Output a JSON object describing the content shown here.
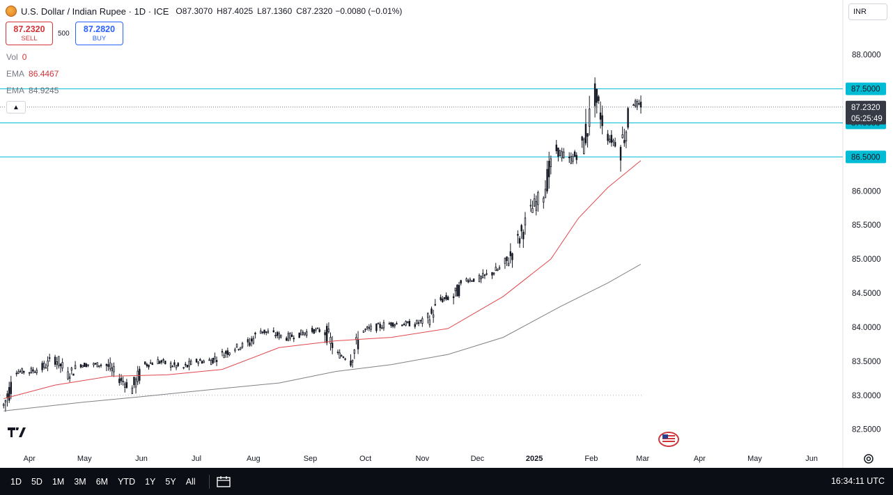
{
  "window": {
    "symbol_title": "U.S. Dollar / Indian Rupee · 1D · ICE",
    "ohlc": {
      "o_label": "O",
      "o": "87.3070",
      "h_label": "H",
      "h": "87.4025",
      "l_label": "L",
      "l": "87.1360",
      "c_label": "C",
      "c": "87.2320",
      "change": "−0.0080 (−0.01%)"
    },
    "currency_selector": "INR"
  },
  "trade": {
    "sell_price": "87.2320",
    "sell_label": "SELL",
    "spread": "500",
    "buy_price": "87.2820",
    "buy_label": "BUY"
  },
  "indicators": {
    "vol_label": "Vol",
    "vol_value": "0",
    "ema1_label": "EMA",
    "ema1_value": "86.4467",
    "ema2_label": "EMA",
    "ema2_value": "84.9245"
  },
  "bottom_bar": {
    "ranges": [
      "1D",
      "5D",
      "1M",
      "3M",
      "6M",
      "YTD",
      "1Y",
      "5Y",
      "All"
    ],
    "clock": "16:34:11 UTC"
  },
  "colors": {
    "candle": "#131722",
    "ema_fast": "#e0474c",
    "ema_slow": "#7f7f86",
    "level_line": "#00bcd4",
    "level_label_bg": "#00bcd4",
    "last_price_bg": "#363a45",
    "axis_text": "#131722"
  },
  "icons": [
    "usd-inr-symbol-icon",
    "chevron-up-icon",
    "tradingview-logo-icon",
    "us-flag-icon",
    "gear-icon",
    "calendar-range-icon"
  ],
  "chart_data": {
    "type": "candlestick",
    "y_axis_ticks": [
      "88.0000",
      "87.5000",
      "87.0000",
      "86.5000",
      "86.0000",
      "85.5000",
      "85.0000",
      "84.5000",
      "84.0000",
      "83.5000",
      "83.0000",
      "82.5000"
    ],
    "ylim": [
      82.2,
      88.6
    ],
    "x_axis_ticks": [
      "Apr",
      "May",
      "Jun",
      "Jul",
      "Aug",
      "Sep",
      "Oct",
      "Nov",
      "Dec",
      "2025",
      "Feb",
      "Mar",
      "Apr",
      "May",
      "Jun"
    ],
    "x_tick_dates": [
      "2024-04-01",
      "2024-05-01",
      "2024-06-01",
      "2024-07-01",
      "2024-08-01",
      "2024-09-01",
      "2024-10-01",
      "2024-11-01",
      "2024-12-01",
      "2025-01-01",
      "2025-02-01",
      "2025-03-01",
      "2025-04-01",
      "2025-05-01",
      "2025-06-01"
    ],
    "horizontal_levels": [
      "87.5000",
      "87.0000",
      "86.5000"
    ],
    "last_price_label": "87.2320",
    "countdown_label": "05:25:49",
    "dotted_reference": 83.0,
    "weekly_closes": [
      {
        "date": "2024-03-18",
        "close": 82.85
      },
      {
        "date": "2024-03-25",
        "close": 83.35
      },
      {
        "date": "2024-04-01",
        "close": 83.35
      },
      {
        "date": "2024-04-08",
        "close": 83.4
      },
      {
        "date": "2024-04-15",
        "close": 83.55
      },
      {
        "date": "2024-04-22",
        "close": 83.3
      },
      {
        "date": "2024-04-29",
        "close": 83.45
      },
      {
        "date": "2024-05-06",
        "close": 83.45
      },
      {
        "date": "2024-05-13",
        "close": 83.45
      },
      {
        "date": "2024-05-20",
        "close": 83.25
      },
      {
        "date": "2024-05-27",
        "close": 83.1
      },
      {
        "date": "2024-06-03",
        "close": 83.45
      },
      {
        "date": "2024-06-10",
        "close": 83.5
      },
      {
        "date": "2024-06-17",
        "close": 83.45
      },
      {
        "date": "2024-06-24",
        "close": 83.4
      },
      {
        "date": "2024-07-01",
        "close": 83.5
      },
      {
        "date": "2024-07-08",
        "close": 83.5
      },
      {
        "date": "2024-07-15",
        "close": 83.6
      },
      {
        "date": "2024-07-22",
        "close": 83.7
      },
      {
        "date": "2024-07-29",
        "close": 83.75
      },
      {
        "date": "2024-08-05",
        "close": 83.95
      },
      {
        "date": "2024-08-12",
        "close": 83.9
      },
      {
        "date": "2024-08-19",
        "close": 83.85
      },
      {
        "date": "2024-08-26",
        "close": 83.9
      },
      {
        "date": "2024-09-02",
        "close": 83.95
      },
      {
        "date": "2024-09-09",
        "close": 83.95
      },
      {
        "date": "2024-09-16",
        "close": 83.6
      },
      {
        "date": "2024-09-23",
        "close": 83.55
      },
      {
        "date": "2024-09-30",
        "close": 83.95
      },
      {
        "date": "2024-10-07",
        "close": 84.0
      },
      {
        "date": "2024-10-14",
        "close": 84.05
      },
      {
        "date": "2024-10-21",
        "close": 84.05
      },
      {
        "date": "2024-10-28",
        "close": 84.05
      },
      {
        "date": "2024-11-04",
        "close": 84.1
      },
      {
        "date": "2024-11-11",
        "close": 84.4
      },
      {
        "date": "2024-11-18",
        "close": 84.45
      },
      {
        "date": "2024-11-25",
        "close": 84.7
      },
      {
        "date": "2024-12-02",
        "close": 84.7
      },
      {
        "date": "2024-12-09",
        "close": 84.8
      },
      {
        "date": "2024-12-16",
        "close": 84.9
      },
      {
        "date": "2024-12-23",
        "close": 85.25
      },
      {
        "date": "2024-12-30",
        "close": 85.7
      },
      {
        "date": "2025-01-06",
        "close": 86.0
      },
      {
        "date": "2025-01-13",
        "close": 86.6
      },
      {
        "date": "2025-01-20",
        "close": 86.45
      },
      {
        "date": "2025-01-27",
        "close": 86.6
      },
      {
        "date": "2025-02-03",
        "close": 87.4
      },
      {
        "date": "2025-02-10",
        "close": 86.8
      },
      {
        "date": "2025-02-17",
        "close": 86.65
      },
      {
        "date": "2025-02-24",
        "close": 87.3
      },
      {
        "date": "2025-02-28",
        "close": 87.232
      }
    ],
    "ema_fast_points": [
      {
        "date": "2024-03-18",
        "value": 82.95
      },
      {
        "date": "2024-04-15",
        "value": 83.15
      },
      {
        "date": "2024-05-15",
        "value": 83.28
      },
      {
        "date": "2024-06-15",
        "value": 83.3
      },
      {
        "date": "2024-07-15",
        "value": 83.38
      },
      {
        "date": "2024-08-15",
        "value": 83.7
      },
      {
        "date": "2024-09-15",
        "value": 83.8
      },
      {
        "date": "2024-10-15",
        "value": 83.85
      },
      {
        "date": "2024-11-15",
        "value": 83.98
      },
      {
        "date": "2024-12-15",
        "value": 84.45
      },
      {
        "date": "2025-01-10",
        "value": 85.0
      },
      {
        "date": "2025-01-25",
        "value": 85.6
      },
      {
        "date": "2025-02-10",
        "value": 86.05
      },
      {
        "date": "2025-02-28",
        "value": 86.4467
      }
    ],
    "ema_slow_points": [
      {
        "date": "2024-03-18",
        "value": 82.77
      },
      {
        "date": "2024-05-01",
        "value": 82.9
      },
      {
        "date": "2024-06-01",
        "value": 82.98
      },
      {
        "date": "2024-07-15",
        "value": 83.1
      },
      {
        "date": "2024-08-15",
        "value": 83.18
      },
      {
        "date": "2024-09-15",
        "value": 83.35
      },
      {
        "date": "2024-10-15",
        "value": 83.45
      },
      {
        "date": "2024-11-15",
        "value": 83.6
      },
      {
        "date": "2024-12-15",
        "value": 83.85
      },
      {
        "date": "2025-01-15",
        "value": 84.3
      },
      {
        "date": "2025-02-10",
        "value": 84.65
      },
      {
        "date": "2025-02-28",
        "value": 84.9245
      }
    ]
  }
}
